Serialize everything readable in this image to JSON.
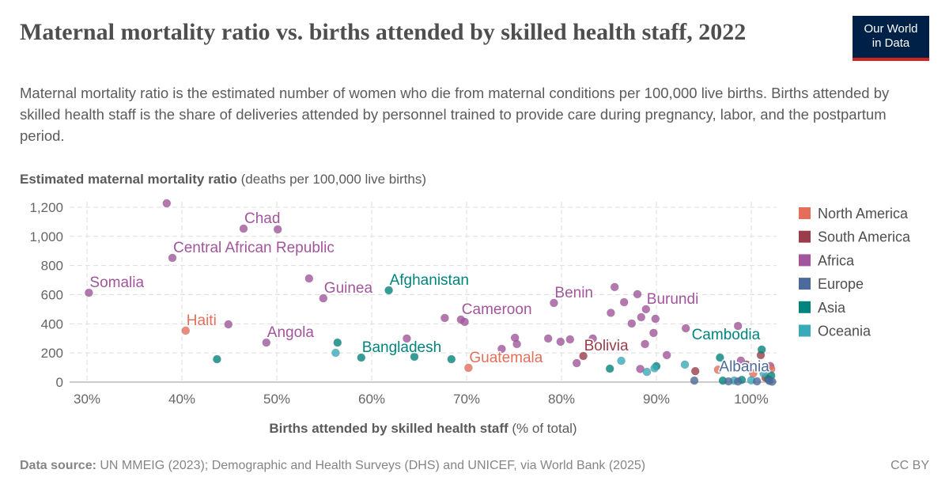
{
  "header": {
    "title": "Maternal mortality ratio vs. births attended by skilled health staff, 2022",
    "subtitle": "Maternal mortality ratio is the estimated number of women who die from maternal conditions per 100,000 live births. Births attended by skilled health staff is the share of deliveries attended by personnel trained to provide care during pregnancy, labor, and the postpartum period.",
    "logo_line1": "Our World",
    "logo_line2": "in Data"
  },
  "footer": {
    "source_label": "Data source:",
    "source_text": " UN MMEIG (2023); Demographic and Health Surveys (DHS) and UNICEF, via World Bank (2025)",
    "license": "CC BY"
  },
  "chart_data": {
    "type": "scatter",
    "ylabel_bold": "Estimated maternal mortality ratio",
    "ylabel_rest": " (deaths per 100,000 live births)",
    "xlabel_bold": "Births attended by skilled health staff",
    "xlabel_rest": " (% of total)",
    "xlim": [
      28.2,
      102.7
    ],
    "ylim": [
      0,
      1250
    ],
    "x_ticks": [
      30,
      40,
      50,
      60,
      70,
      80,
      90,
      100
    ],
    "x_tick_labels": [
      "30%",
      "40%",
      "50%",
      "60%",
      "70%",
      "80%",
      "90%",
      "100%"
    ],
    "y_ticks": [
      0,
      200,
      400,
      600,
      800,
      1000,
      1200
    ],
    "y_tick_labels": [
      "0",
      "200",
      "400",
      "600",
      "800",
      "1,000",
      "1,200"
    ],
    "grid": true,
    "legend_position": "right",
    "regions": [
      {
        "name": "North America",
        "color": "#e56e5a"
      },
      {
        "name": "South America",
        "color": "#9a3c49"
      },
      {
        "name": "Africa",
        "color": "#a2559c"
      },
      {
        "name": "Europe",
        "color": "#4c6a9c"
      },
      {
        "name": "Asia",
        "color": "#00847e"
      },
      {
        "name": "Oceania",
        "color": "#38aaba"
      }
    ],
    "points": [
      {
        "x": 30.2,
        "y": 613,
        "region": "Africa",
        "label": "Somalia"
      },
      {
        "x": 38.4,
        "y": 1227,
        "region": "Africa"
      },
      {
        "x": 46.5,
        "y": 1053,
        "region": "Africa",
        "label": "Chad"
      },
      {
        "x": 50.1,
        "y": 1048,
        "region": "Africa"
      },
      {
        "x": 39.0,
        "y": 852,
        "region": "Africa",
        "label": "Central African Republic"
      },
      {
        "x": 44.9,
        "y": 396,
        "region": "Africa"
      },
      {
        "x": 48.9,
        "y": 271,
        "region": "Africa",
        "label": "Angola"
      },
      {
        "x": 53.4,
        "y": 711,
        "region": "Africa"
      },
      {
        "x": 54.9,
        "y": 575,
        "region": "Africa",
        "label": "Guinea"
      },
      {
        "x": 63.7,
        "y": 299,
        "region": "Africa"
      },
      {
        "x": 67.7,
        "y": 440,
        "region": "Africa"
      },
      {
        "x": 69.4,
        "y": 429,
        "region": "Africa",
        "label": "Cameroon"
      },
      {
        "x": 69.8,
        "y": 413,
        "region": "Africa"
      },
      {
        "x": 73.7,
        "y": 228,
        "region": "Africa"
      },
      {
        "x": 75.1,
        "y": 304,
        "region": "Africa"
      },
      {
        "x": 75.3,
        "y": 261,
        "region": "Africa"
      },
      {
        "x": 78.6,
        "y": 299,
        "region": "Africa"
      },
      {
        "x": 79.2,
        "y": 543,
        "region": "Africa",
        "label": "Benin"
      },
      {
        "x": 79.9,
        "y": 277,
        "region": "Africa"
      },
      {
        "x": 80.9,
        "y": 293,
        "region": "Africa"
      },
      {
        "x": 81.6,
        "y": 130,
        "region": "Africa"
      },
      {
        "x": 83.3,
        "y": 299,
        "region": "Africa"
      },
      {
        "x": 85.6,
        "y": 652,
        "region": "Africa"
      },
      {
        "x": 85.2,
        "y": 475,
        "region": "Africa"
      },
      {
        "x": 86.6,
        "y": 548,
        "region": "Africa"
      },
      {
        "x": 87.4,
        "y": 402,
        "region": "Africa"
      },
      {
        "x": 88.0,
        "y": 603,
        "region": "Africa"
      },
      {
        "x": 88.9,
        "y": 500,
        "region": "Africa",
        "label": "Burundi"
      },
      {
        "x": 88.4,
        "y": 445,
        "region": "Africa"
      },
      {
        "x": 89.9,
        "y": 434,
        "region": "Africa"
      },
      {
        "x": 89.7,
        "y": 337,
        "region": "Africa"
      },
      {
        "x": 88.8,
        "y": 261,
        "region": "Africa"
      },
      {
        "x": 91.1,
        "y": 185,
        "region": "Africa"
      },
      {
        "x": 88.3,
        "y": 90,
        "region": "Africa"
      },
      {
        "x": 93.1,
        "y": 369,
        "region": "Africa"
      },
      {
        "x": 98.6,
        "y": 385,
        "region": "Africa"
      },
      {
        "x": 98.9,
        "y": 147,
        "region": "Africa"
      },
      {
        "x": 102.0,
        "y": 110,
        "region": "Africa"
      },
      {
        "x": 40.4,
        "y": 353,
        "region": "North America",
        "label": "Haiti"
      },
      {
        "x": 70.2,
        "y": 98,
        "region": "North America",
        "label": "Guatemala"
      },
      {
        "x": 96.5,
        "y": 85,
        "region": "North America"
      },
      {
        "x": 100.2,
        "y": 60,
        "region": "North America"
      },
      {
        "x": 102.1,
        "y": 90,
        "region": "North America"
      },
      {
        "x": 82.3,
        "y": 179,
        "region": "South America",
        "label": "Bolivia"
      },
      {
        "x": 101.0,
        "y": 185,
        "region": "South America"
      },
      {
        "x": 94.1,
        "y": 75,
        "region": "South America"
      },
      {
        "x": 99.5,
        "y": 120,
        "region": "South America"
      },
      {
        "x": 101.5,
        "y": 30,
        "region": "South America"
      },
      {
        "x": 43.7,
        "y": 157,
        "region": "Asia"
      },
      {
        "x": 56.4,
        "y": 271,
        "region": "Asia"
      },
      {
        "x": 58.9,
        "y": 168,
        "region": "Asia",
        "label": "Bangladesh"
      },
      {
        "x": 61.8,
        "y": 630,
        "region": "Asia",
        "label": "Afghanistan"
      },
      {
        "x": 64.5,
        "y": 174,
        "region": "Asia"
      },
      {
        "x": 68.4,
        "y": 157,
        "region": "Asia"
      },
      {
        "x": 85.1,
        "y": 92,
        "region": "Asia"
      },
      {
        "x": 90.0,
        "y": 109,
        "region": "Asia"
      },
      {
        "x": 96.7,
        "y": 168,
        "region": "Asia"
      },
      {
        "x": 101.1,
        "y": 223,
        "region": "Asia",
        "label": "Cambodia"
      },
      {
        "x": 97.0,
        "y": 10,
        "region": "Asia"
      },
      {
        "x": 99.0,
        "y": 15,
        "region": "Asia"
      },
      {
        "x": 101.8,
        "y": 20,
        "region": "Asia"
      },
      {
        "x": 102.1,
        "y": 45,
        "region": "Asia"
      },
      {
        "x": 56.2,
        "y": 201,
        "region": "Oceania"
      },
      {
        "x": 86.3,
        "y": 146,
        "region": "Oceania"
      },
      {
        "x": 89.0,
        "y": 70,
        "region": "Oceania"
      },
      {
        "x": 89.8,
        "y": 95,
        "region": "Oceania"
      },
      {
        "x": 93.0,
        "y": 120,
        "region": "Oceania"
      },
      {
        "x": 101.3,
        "y": 60,
        "region": "Oceania"
      },
      {
        "x": 98.2,
        "y": 10,
        "region": "Oceania"
      },
      {
        "x": 100.0,
        "y": 12,
        "region": "Oceania"
      },
      {
        "x": 94.0,
        "y": 10,
        "region": "Europe"
      },
      {
        "x": 97.6,
        "y": 5,
        "region": "Europe"
      },
      {
        "x": 98.6,
        "y": 4,
        "region": "Europe"
      },
      {
        "x": 101.9,
        "y": 8,
        "region": "Europe",
        "label": "Albania"
      },
      {
        "x": 100.6,
        "y": 5,
        "region": "Europe"
      },
      {
        "x": 102.2,
        "y": 3,
        "region": "Europe"
      }
    ]
  }
}
